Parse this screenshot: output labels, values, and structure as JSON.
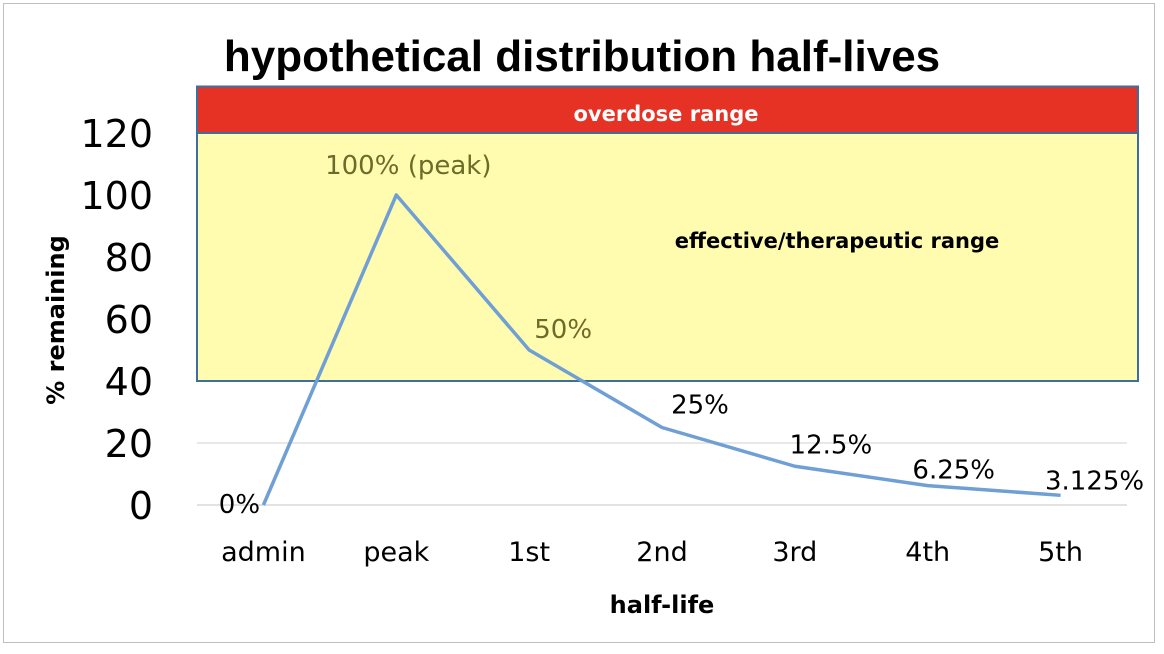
{
  "chart_data": {
    "type": "line",
    "title": "hypothetical distribution half-lives",
    "xlabel": "half-life",
    "ylabel": "% remaining",
    "categories": [
      "admin",
      "peak",
      "1st",
      "2nd",
      "3rd",
      "4th",
      "5th"
    ],
    "values": [
      0,
      100,
      50,
      25,
      12.5,
      6.25,
      3.125
    ],
    "data_labels": [
      "0%",
      "100% (peak)",
      "50%",
      "25%",
      "12.5%",
      "6.25%",
      "3.125%"
    ],
    "ylim": [
      0,
      120
    ],
    "yticks": [
      "0",
      "20",
      "40",
      "60",
      "80",
      "100",
      "120"
    ],
    "grid": true,
    "legend": "none",
    "bands": [
      {
        "label": "effective/therapeutic range",
        "from": 40,
        "to": 120,
        "color": "#fffcb0"
      },
      {
        "label": "overdose range",
        "from": 120,
        "to": 135,
        "color": "#e63224"
      }
    ],
    "colors": {
      "line": "#6f9fd4",
      "band_border": "#3d6e9e",
      "gridline": "#d9d9d9",
      "band_label_on_red": "#ffffff",
      "band_label_on_yellow": "#000000",
      "data_label_in_band": "#6b6b2a",
      "data_label": "#000000"
    }
  }
}
